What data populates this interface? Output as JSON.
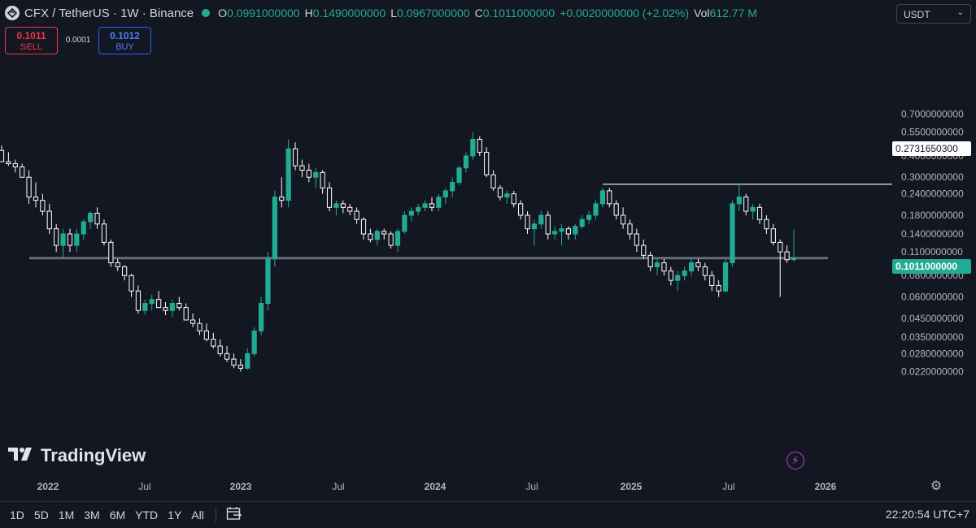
{
  "header": {
    "symbol": "CFX / TetherUS · 1W · Binance",
    "open_key": "O",
    "open": "0.0991000000",
    "high_key": "H",
    "high": "0.1490000000",
    "low_key": "L",
    "low": "0.0967000000",
    "close_key": "C",
    "close": "0.1011000000",
    "change": "+0.0020000000 (+2.02%)",
    "vol_key": "Vol",
    "vol": "612.77 M"
  },
  "trade": {
    "sell_price": "0.1011",
    "sell_label": "SELL",
    "spread": "0.0001",
    "buy_price": "0.1012",
    "buy_label": "BUY"
  },
  "currency_select": "USDT",
  "watermark": "TradingView",
  "price_tags": {
    "line": "0.2731650300",
    "last": "0.1011000000"
  },
  "time_ranges": [
    "1D",
    "5D",
    "1M",
    "3M",
    "6M",
    "YTD",
    "1Y",
    "All"
  ],
  "clock": "22:20:54 UTC+7",
  "colors": {
    "up": "#22ab94",
    "down": "#ffffff",
    "bg": "#131722",
    "accent": "#2962ff",
    "sell": "#f23645"
  },
  "icons": {
    "settings": "gear-icon",
    "calendar": "calendar-range-icon",
    "bolt": "lightning-icon"
  },
  "chart_data": {
    "type": "candlestick",
    "scale": "log",
    "ylim": [
      0.02,
      0.75
    ],
    "y_ticks": [
      "0.7000000000",
      "0.5500000000",
      "0.4000000000",
      "0.3000000000",
      "0.2400000000",
      "0.1800000000",
      "0.1400000000",
      "0.1100000000",
      "0.0800000000",
      "0.0600000000",
      "0.0450000000",
      "0.0350000000",
      "0.0280000000",
      "0.0220000000"
    ],
    "x_ticks": [
      "2022",
      "Jul",
      "2023",
      "Jul",
      "2024",
      "Jul",
      "2025",
      "Jul",
      "2026"
    ],
    "horizontal_lines": [
      {
        "value": 0.27316503,
        "color": "#ffffff",
        "from": "2024-11"
      },
      {
        "value": 0.1011,
        "color": "#787b86",
        "from": "2022-03"
      }
    ],
    "candles": [
      [
        0.43,
        0.46,
        0.37,
        0.37
      ],
      [
        0.37,
        0.42,
        0.35,
        0.36
      ],
      [
        0.36,
        0.38,
        0.32,
        0.345
      ],
      [
        0.345,
        0.36,
        0.3,
        0.3
      ],
      [
        0.3,
        0.33,
        0.21,
        0.23
      ],
      [
        0.23,
        0.28,
        0.2,
        0.22
      ],
      [
        0.22,
        0.24,
        0.18,
        0.19
      ],
      [
        0.19,
        0.21,
        0.14,
        0.15
      ],
      [
        0.15,
        0.16,
        0.11,
        0.12
      ],
      [
        0.12,
        0.15,
        0.1,
        0.14
      ],
      [
        0.14,
        0.15,
        0.11,
        0.12
      ],
      [
        0.12,
        0.15,
        0.11,
        0.14
      ],
      [
        0.14,
        0.17,
        0.13,
        0.165
      ],
      [
        0.165,
        0.19,
        0.15,
        0.185
      ],
      [
        0.185,
        0.2,
        0.15,
        0.16
      ],
      [
        0.16,
        0.17,
        0.12,
        0.125
      ],
      [
        0.125,
        0.13,
        0.09,
        0.095
      ],
      [
        0.095,
        0.1,
        0.085,
        0.09
      ],
      [
        0.09,
        0.092,
        0.075,
        0.08
      ],
      [
        0.08,
        0.082,
        0.06,
        0.065
      ],
      [
        0.065,
        0.07,
        0.048,
        0.05
      ],
      [
        0.05,
        0.058,
        0.047,
        0.055
      ],
      [
        0.055,
        0.062,
        0.05,
        0.058
      ],
      [
        0.058,
        0.065,
        0.054,
        0.052
      ],
      [
        0.052,
        0.056,
        0.047,
        0.05
      ],
      [
        0.05,
        0.058,
        0.046,
        0.055
      ],
      [
        0.055,
        0.06,
        0.05,
        0.052
      ],
      [
        0.052,
        0.055,
        0.045,
        0.044
      ],
      [
        0.044,
        0.048,
        0.04,
        0.042
      ],
      [
        0.042,
        0.045,
        0.036,
        0.038
      ],
      [
        0.038,
        0.042,
        0.033,
        0.034
      ],
      [
        0.034,
        0.037,
        0.03,
        0.031
      ],
      [
        0.031,
        0.034,
        0.027,
        0.028
      ],
      [
        0.028,
        0.031,
        0.025,
        0.026
      ],
      [
        0.026,
        0.028,
        0.023,
        0.024
      ],
      [
        0.024,
        0.026,
        0.022,
        0.023
      ],
      [
        0.023,
        0.03,
        0.0225,
        0.028
      ],
      [
        0.028,
        0.04,
        0.027,
        0.038
      ],
      [
        0.038,
        0.06,
        0.036,
        0.055
      ],
      [
        0.055,
        0.11,
        0.05,
        0.1
      ],
      [
        0.1,
        0.25,
        0.09,
        0.23
      ],
      [
        0.23,
        0.3,
        0.2,
        0.22
      ],
      [
        0.22,
        0.5,
        0.2,
        0.44
      ],
      [
        0.44,
        0.48,
        0.33,
        0.35
      ],
      [
        0.35,
        0.38,
        0.3,
        0.33
      ],
      [
        0.33,
        0.36,
        0.28,
        0.3
      ],
      [
        0.3,
        0.34,
        0.26,
        0.32
      ],
      [
        0.32,
        0.33,
        0.24,
        0.26
      ],
      [
        0.26,
        0.28,
        0.19,
        0.2
      ],
      [
        0.2,
        0.22,
        0.18,
        0.21
      ],
      [
        0.21,
        0.22,
        0.185,
        0.2
      ],
      [
        0.2,
        0.21,
        0.18,
        0.19
      ],
      [
        0.19,
        0.2,
        0.16,
        0.17
      ],
      [
        0.17,
        0.175,
        0.13,
        0.14
      ],
      [
        0.14,
        0.15,
        0.125,
        0.13
      ],
      [
        0.13,
        0.15,
        0.12,
        0.145
      ],
      [
        0.145,
        0.15,
        0.13,
        0.14
      ],
      [
        0.14,
        0.145,
        0.115,
        0.12
      ],
      [
        0.12,
        0.15,
        0.11,
        0.145
      ],
      [
        0.145,
        0.19,
        0.14,
        0.18
      ],
      [
        0.18,
        0.2,
        0.165,
        0.19
      ],
      [
        0.19,
        0.21,
        0.18,
        0.2
      ],
      [
        0.2,
        0.22,
        0.19,
        0.21
      ],
      [
        0.21,
        0.23,
        0.19,
        0.2
      ],
      [
        0.2,
        0.24,
        0.19,
        0.23
      ],
      [
        0.23,
        0.26,
        0.21,
        0.25
      ],
      [
        0.25,
        0.3,
        0.23,
        0.28
      ],
      [
        0.28,
        0.35,
        0.27,
        0.34
      ],
      [
        0.34,
        0.42,
        0.32,
        0.4
      ],
      [
        0.4,
        0.55,
        0.38,
        0.5
      ],
      [
        0.5,
        0.52,
        0.4,
        0.42
      ],
      [
        0.42,
        0.45,
        0.3,
        0.31
      ],
      [
        0.31,
        0.33,
        0.25,
        0.26
      ],
      [
        0.26,
        0.27,
        0.22,
        0.23
      ],
      [
        0.23,
        0.25,
        0.21,
        0.24
      ],
      [
        0.24,
        0.25,
        0.2,
        0.21
      ],
      [
        0.21,
        0.22,
        0.17,
        0.18
      ],
      [
        0.18,
        0.19,
        0.14,
        0.15
      ],
      [
        0.15,
        0.17,
        0.12,
        0.16
      ],
      [
        0.16,
        0.19,
        0.15,
        0.18
      ],
      [
        0.18,
        0.19,
        0.13,
        0.14
      ],
      [
        0.14,
        0.155,
        0.13,
        0.145
      ],
      [
        0.145,
        0.16,
        0.12,
        0.15
      ],
      [
        0.15,
        0.155,
        0.13,
        0.14
      ],
      [
        0.14,
        0.16,
        0.13,
        0.155
      ],
      [
        0.155,
        0.18,
        0.15,
        0.17
      ],
      [
        0.17,
        0.19,
        0.16,
        0.18
      ],
      [
        0.18,
        0.22,
        0.17,
        0.21
      ],
      [
        0.21,
        0.26,
        0.2,
        0.25
      ],
      [
        0.25,
        0.26,
        0.2,
        0.21
      ],
      [
        0.21,
        0.22,
        0.17,
        0.18
      ],
      [
        0.18,
        0.2,
        0.15,
        0.16
      ],
      [
        0.16,
        0.17,
        0.13,
        0.14
      ],
      [
        0.14,
        0.15,
        0.11,
        0.12
      ],
      [
        0.12,
        0.13,
        0.1,
        0.105
      ],
      [
        0.105,
        0.11,
        0.085,
        0.09
      ],
      [
        0.09,
        0.1,
        0.08,
        0.095
      ],
      [
        0.095,
        0.1,
        0.08,
        0.085
      ],
      [
        0.085,
        0.09,
        0.07,
        0.075
      ],
      [
        0.075,
        0.085,
        0.065,
        0.08
      ],
      [
        0.08,
        0.09,
        0.075,
        0.085
      ],
      [
        0.085,
        0.1,
        0.08,
        0.095
      ],
      [
        0.095,
        0.1,
        0.085,
        0.09
      ],
      [
        0.09,
        0.095,
        0.075,
        0.08
      ],
      [
        0.08,
        0.085,
        0.065,
        0.07
      ],
      [
        0.07,
        0.075,
        0.06,
        0.065
      ],
      [
        0.065,
        0.1,
        0.064,
        0.095
      ],
      [
        0.095,
        0.22,
        0.09,
        0.21
      ],
      [
        0.21,
        0.27,
        0.19,
        0.23
      ],
      [
        0.23,
        0.24,
        0.18,
        0.19
      ],
      [
        0.19,
        0.21,
        0.17,
        0.2
      ],
      [
        0.2,
        0.21,
        0.16,
        0.17
      ],
      [
        0.17,
        0.18,
        0.14,
        0.15
      ],
      [
        0.15,
        0.16,
        0.12,
        0.125
      ],
      [
        0.125,
        0.13,
        0.06,
        0.11
      ],
      [
        0.11,
        0.12,
        0.095,
        0.099
      ],
      [
        0.0991,
        0.149,
        0.0967,
        0.1011
      ]
    ]
  }
}
